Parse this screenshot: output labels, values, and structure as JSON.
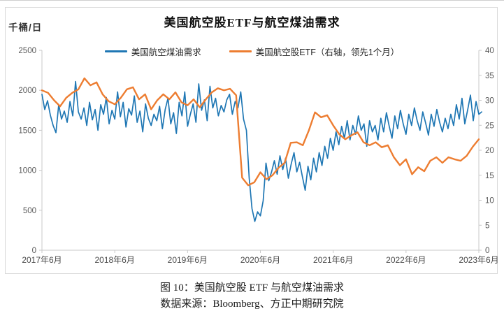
{
  "chart": {
    "title": "美国航空股ETF与航空煤油需求",
    "unit_label": "千桶/日"
  },
  "caption": {
    "line1": "图 10：美国航空股 ETF 与航空煤油需求",
    "line2": "数据来源：Bloomberg、方正中期研究院"
  },
  "colors": {
    "demand_line": "#1F77B4",
    "etf_line": "#ED7D31",
    "axis": "#c9c9c9",
    "y_tick_text": "#595959",
    "x_tick_text": "#4a4a4a"
  },
  "chart_data": {
    "type": "line",
    "title": "美国航空股ETF与航空煤油需求",
    "y_left_label": "千桶/日",
    "grid": false,
    "legend_position": "top-center",
    "axes": {
      "x": {
        "min": 2017.45,
        "max": 2023.45,
        "ticks": [
          2017.45,
          2018.45,
          2019.45,
          2020.45,
          2021.45,
          2022.45,
          2023.45
        ],
        "tick_labels": [
          "2017年6月",
          "2018年6月",
          "2019年6月",
          "2020年6月",
          "2021年6月",
          "2022年6月",
          "2023年6月"
        ]
      },
      "y_left": {
        "min": 0,
        "max": 2500,
        "ticks": [
          0,
          500,
          1000,
          1500,
          2000,
          2500
        ]
      },
      "y_right": {
        "min": 0,
        "max": 40,
        "ticks": [
          0,
          5,
          10,
          15,
          20,
          25,
          30,
          35,
          40
        ]
      }
    },
    "series": [
      {
        "name": "美国航空煤油需求",
        "axis": "left",
        "color": "#1F77B4",
        "x_start": 2017.45,
        "x_step": 0.03846,
        "values": [
          1950,
          1760,
          1870,
          1690,
          1560,
          1470,
          1820,
          1640,
          1740,
          1600,
          1860,
          1680,
          2110,
          1730,
          1640,
          1780,
          1560,
          1850,
          1630,
          1760,
          1500,
          1820,
          1700,
          1910,
          1580,
          1750,
          1640,
          1980,
          1670,
          1850,
          1540,
          1770,
          1690,
          1930,
          1600,
          1740,
          1480,
          1830,
          1650,
          1560,
          1700,
          1620,
          1800,
          1520,
          1760,
          1900,
          1580,
          1720,
          1460,
          1850,
          1680,
          1980,
          1550,
          1700,
          1830,
          1600,
          2080,
          1750,
          1880,
          1620,
          2050,
          1780,
          1900,
          1680,
          1810,
          1730,
          1880,
          1950,
          1700,
          1860,
          1780,
          1980,
          1640,
          1500,
          900,
          520,
          360,
          480,
          430,
          620,
          1090,
          870,
          980,
          1120,
          950,
          1180,
          1010,
          1150,
          900,
          1080,
          1220,
          980,
          1100,
          920,
          750,
          1050,
          880,
          1150,
          980,
          1220,
          1060,
          1300,
          1150,
          1400,
          1250,
          1480,
          1320,
          1550,
          1400,
          1620,
          1380,
          1560,
          1450,
          1680,
          1500,
          1580,
          1300,
          1620,
          1480,
          1560,
          1380,
          1650,
          1480,
          1720,
          1550,
          1400,
          1680,
          1520,
          1750,
          1580,
          1450,
          1700,
          1560,
          1780,
          1620,
          1500,
          1730,
          1590,
          1440,
          1700,
          1550,
          1760,
          1600,
          1480,
          1650,
          1520,
          1700,
          1560,
          1820,
          1640,
          1900,
          1580,
          1750,
          1940,
          1620,
          1860,
          1700,
          1730
        ]
      },
      {
        "name": "美国航空股ETF（右轴，领先1个月）",
        "axis": "right",
        "color": "#ED7D31",
        "x_start": 2017.45,
        "x_step": 0.08333,
        "values": [
          32.0,
          31.5,
          30.0,
          28.8,
          30.5,
          31.5,
          32.2,
          34.4,
          33.0,
          33.6,
          31.2,
          29.8,
          29.2,
          30.5,
          32.2,
          32.6,
          30.2,
          31.2,
          28.2,
          30.0,
          31.2,
          30.2,
          31.6,
          29.6,
          29.0,
          30.2,
          28.6,
          30.2,
          31.6,
          32.4,
          32.0,
          32.3,
          31.0,
          14.5,
          13.0,
          13.6,
          15.6,
          14.2,
          15.0,
          16.5,
          17.5,
          21.5,
          21.6,
          21.0,
          24.0,
          27.6,
          26.6,
          27.0,
          25.0,
          23.2,
          22.2,
          23.0,
          23.6,
          21.6,
          21.0,
          21.6,
          20.6,
          21.0,
          18.6,
          17.0,
          18.2,
          15.2,
          16.6,
          15.8,
          17.9,
          18.6,
          17.5,
          18.6,
          18.2,
          17.9,
          18.9,
          20.7,
          22.2
        ]
      }
    ]
  }
}
